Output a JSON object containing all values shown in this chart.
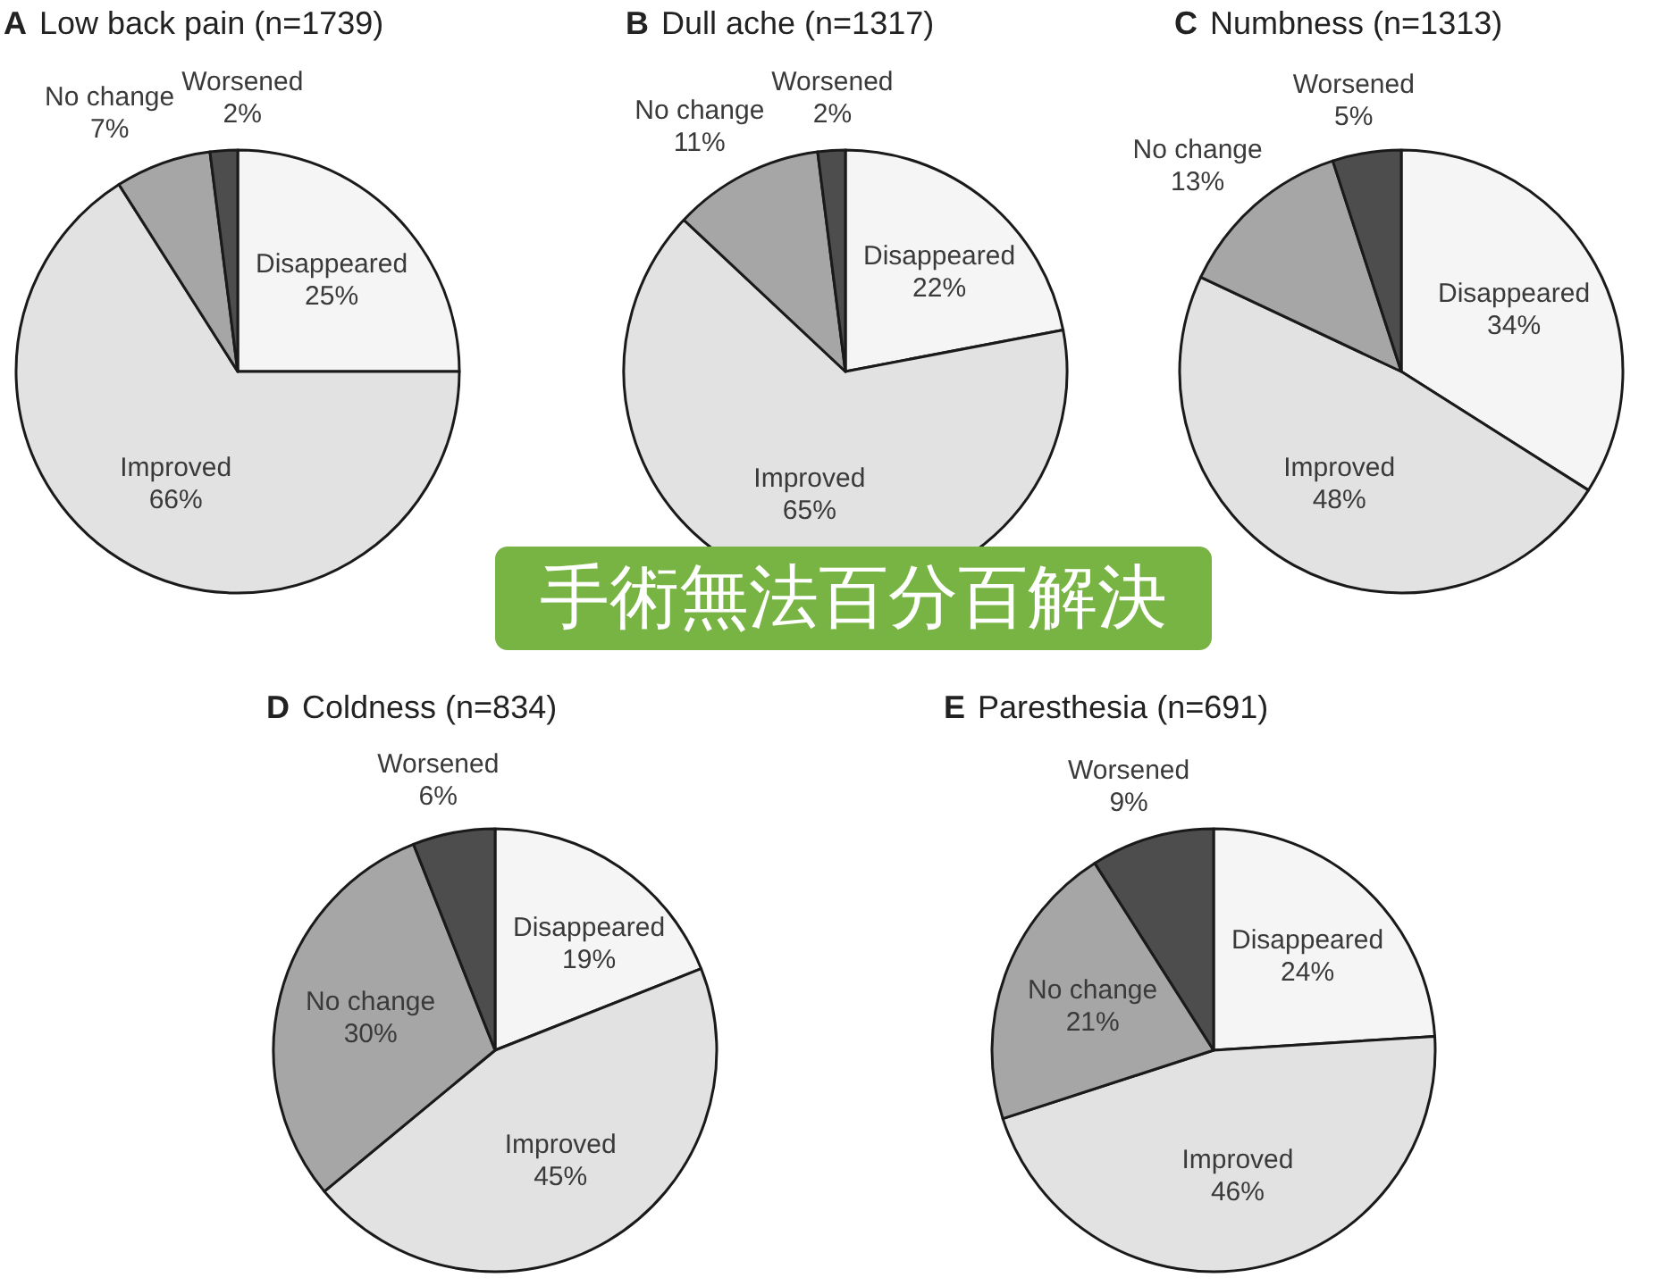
{
  "chart_data": [
    {
      "type": "pie",
      "title": "A Low back pain (n=1739)",
      "categories": [
        "Disappeared",
        "Improved",
        "No change",
        "Worsened"
      ],
      "values": [
        25,
        66,
        7,
        2
      ],
      "value_labels": [
        "25%",
        "66%",
        "7%",
        "2%"
      ],
      "colors": [
        "#f5f5f5",
        "#e2e2e2",
        "#a6a6a6",
        "#4d4d4d"
      ]
    },
    {
      "type": "pie",
      "title": "B Dull ache (n=1317)",
      "categories": [
        "Disappeared",
        "Improved",
        "No change",
        "Worsened"
      ],
      "values": [
        22,
        65,
        11,
        2
      ],
      "value_labels": [
        "22%",
        "65%",
        "11%",
        "2%"
      ],
      "colors": [
        "#f5f5f5",
        "#e2e2e2",
        "#a6a6a6",
        "#4d4d4d"
      ]
    },
    {
      "type": "pie",
      "title": "C Numbness (n=1313)",
      "categories": [
        "Disappeared",
        "Improved",
        "No change",
        "Worsened"
      ],
      "values": [
        34,
        48,
        13,
        5
      ],
      "value_labels": [
        "34%",
        "48%",
        "13%",
        "5%"
      ],
      "colors": [
        "#f5f5f5",
        "#e2e2e2",
        "#a6a6a6",
        "#4d4d4d"
      ]
    },
    {
      "type": "other",
      "title": "手術無法百分百解決",
      "color": "#78b443"
    },
    {
      "type": "pie",
      "title": "D Coldness (n=834)",
      "categories": [
        "Disappeared",
        "Improved",
        "No change",
        "Worsened"
      ],
      "values": [
        19,
        45,
        30,
        6
      ],
      "value_labels": [
        "19%",
        "45%",
        "30%",
        "6%"
      ],
      "colors": [
        "#f5f5f5",
        "#e2e2e2",
        "#a6a6a6",
        "#4d4d4d"
      ]
    },
    {
      "type": "pie",
      "title": "E Paresthesia (n=691)",
      "categories": [
        "Disappeared",
        "Improved",
        "No change",
        "Worsened"
      ],
      "values": [
        24,
        46,
        21,
        9
      ],
      "value_labels": [
        "24%",
        "46%",
        "21%",
        "9%"
      ],
      "colors": [
        "#f5f5f5",
        "#e2e2e2",
        "#a6a6a6",
        "#4d4d4d"
      ]
    }
  ]
}
